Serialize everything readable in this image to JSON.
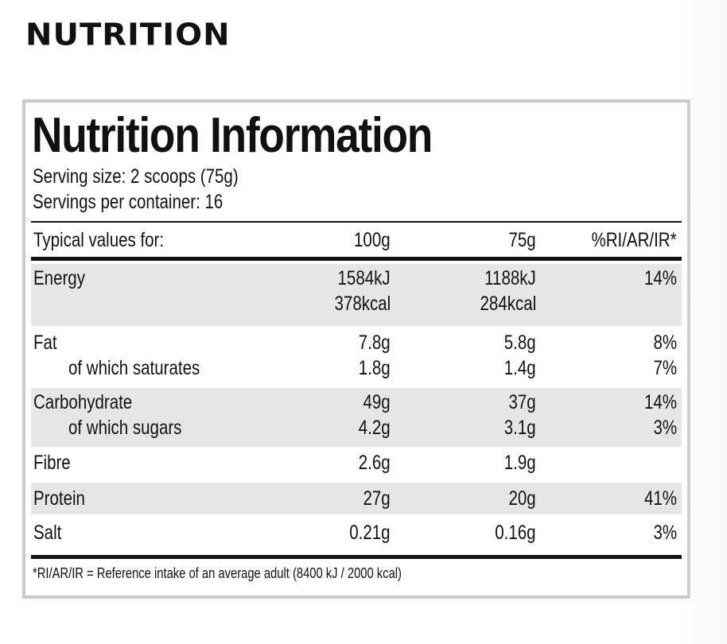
{
  "heading": "NUTRITION",
  "panel": {
    "title": "Nutrition Information",
    "serving_size": "Serving size: 2 scoops (75g)",
    "servings_per_container": "Servings per container: 16",
    "header": {
      "label": "Typical values for:",
      "col_100g": "100g",
      "col_75g": "75g",
      "col_ri": "%RI/AR/IR*"
    },
    "rows": [
      {
        "name": "Energy",
        "v100": "1584kJ",
        "v75": "1188kJ",
        "ri": "14%",
        "v100_2": "378kcal",
        "v75_2": "284kcal"
      },
      {
        "name": "Fat",
        "v100": "7.8g",
        "v75": "5.8g",
        "ri": "8%"
      },
      {
        "name": "of which saturates",
        "v100": "1.8g",
        "v75": "1.4g",
        "ri": "7%"
      },
      {
        "name": "Carbohydrate",
        "v100": "49g",
        "v75": "37g",
        "ri": "14%"
      },
      {
        "name": "of which sugars",
        "v100": "4.2g",
        "v75": "3.1g",
        "ri": "3%"
      },
      {
        "name": "Fibre",
        "v100": "2.6g",
        "v75": "1.9g",
        "ri": ""
      },
      {
        "name": "Protein",
        "v100": "27g",
        "v75": "20g",
        "ri": "41%"
      },
      {
        "name": "Salt",
        "v100": "0.21g",
        "v75": "0.16g",
        "ri": "3%"
      }
    ],
    "footnote": "*RI/AR/IR = Reference intake of an average adult (8400 kJ / 2000 kcal)",
    "shade_color": "#e6e6e6",
    "border_color": "#c9c9c9"
  }
}
